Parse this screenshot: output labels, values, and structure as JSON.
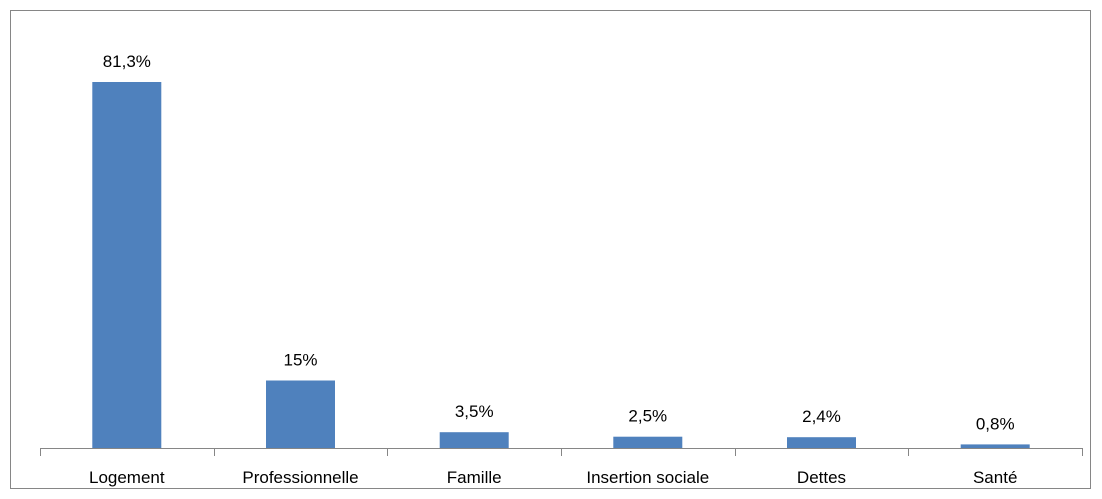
{
  "chart_data": {
    "type": "bar",
    "title": "",
    "xlabel": "",
    "ylabel": "",
    "categories": [
      "Logement",
      "Professionnelle",
      "Famille",
      "Insertion sociale",
      "Dettes",
      "Santé"
    ],
    "values": [
      81.3,
      15,
      3.5,
      2.5,
      2.4,
      0.8
    ],
    "data_labels": [
      "81,3%",
      "15%",
      "3,5%",
      "2,5%",
      "2,4%",
      "0,8%"
    ],
    "ylim": [
      0,
      81.3
    ],
    "grid": false,
    "legend": "none",
    "bar_color": "#4F81BD",
    "axis_color": "#868686"
  }
}
